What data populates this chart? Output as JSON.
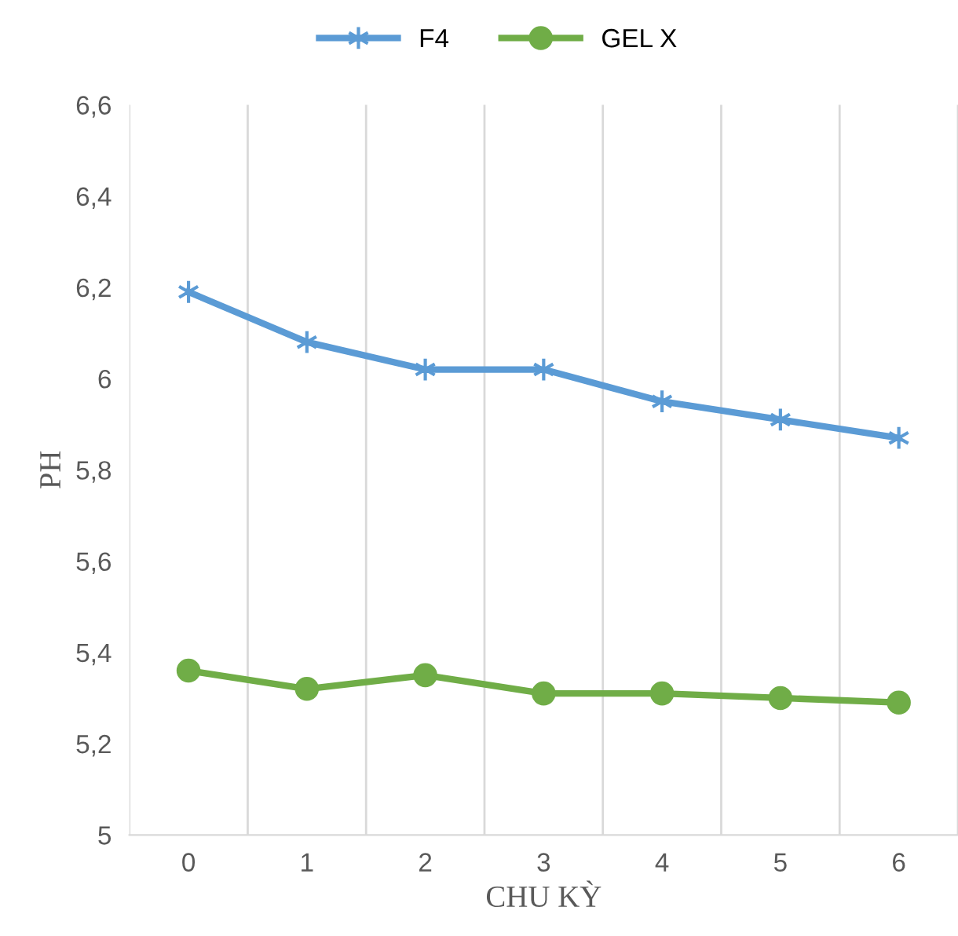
{
  "chart_data": {
    "type": "line",
    "xlabel": "CHU KỲ",
    "ylabel": "PH",
    "categories": [
      "0",
      "1",
      "2",
      "3",
      "4",
      "5",
      "6"
    ],
    "series": [
      {
        "name": "F4",
        "color": "#5b9bd5",
        "marker": "cross",
        "values": [
          6.19,
          6.08,
          6.02,
          6.02,
          5.95,
          5.91,
          5.87
        ]
      },
      {
        "name": "GEL X",
        "color": "#70ad47",
        "marker": "circle",
        "values": [
          5.36,
          5.32,
          5.35,
          5.31,
          5.31,
          5.3,
          5.29
        ]
      }
    ],
    "ylim": [
      5,
      6.6
    ],
    "yticks": [
      {
        "value": 5,
        "label": "5"
      },
      {
        "value": 5.2,
        "label": "5,2"
      },
      {
        "value": 5.4,
        "label": "5,4"
      },
      {
        "value": 5.6,
        "label": "5,6"
      },
      {
        "value": 5.8,
        "label": "5,8"
      },
      {
        "value": 6,
        "label": "6"
      },
      {
        "value": 6.2,
        "label": "6,2"
      },
      {
        "value": 6.4,
        "label": "6,4"
      },
      {
        "value": 6.6,
        "label": "6,6"
      }
    ],
    "grid": "x",
    "legend": "top",
    "line_style": "solid"
  }
}
